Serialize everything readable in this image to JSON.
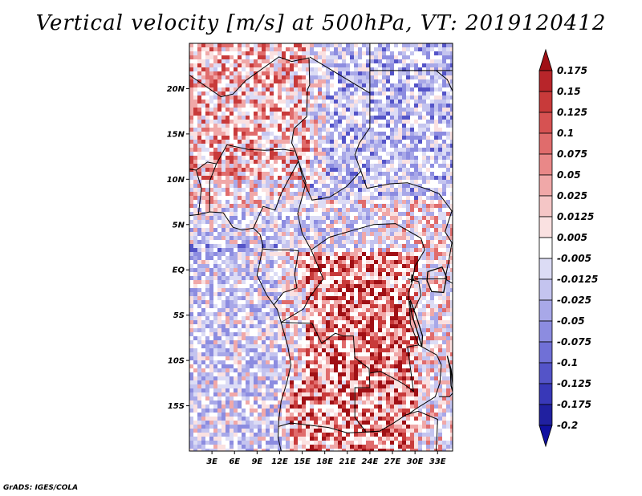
{
  "title": "Vertical velocity [m/s] at 500hPa, VT: 2019120412",
  "footer": "GrADS: IGES/COLA",
  "map": {
    "projection": "lat-lon",
    "lon_range": [
      0,
      35
    ],
    "lat_range": [
      -20,
      25
    ],
    "lat_labels": [
      "20N",
      "15N",
      "10N",
      "5N",
      "EQ",
      "5S",
      "10S",
      "15S"
    ],
    "lat_values": [
      20,
      15,
      10,
      5,
      0,
      -5,
      -10,
      -15
    ],
    "lon_labels": [
      "3E",
      "6E",
      "9E",
      "12E",
      "15E",
      "18E",
      "21E",
      "24E",
      "27E",
      "30E",
      "33E"
    ],
    "lon_values": [
      3,
      6,
      9,
      12,
      15,
      18,
      21,
      24,
      27,
      30,
      33
    ]
  },
  "colorbar": {
    "labels": [
      "0.175",
      "0.15",
      "0.125",
      "0.1",
      "0.075",
      "0.05",
      "0.025",
      "0.0125",
      "0.005",
      "-0.005",
      "-0.0125",
      "-0.025",
      "-0.05",
      "-0.075",
      "-0.1",
      "-0.125",
      "-0.175",
      "-0.2"
    ],
    "colors": [
      "#a01015",
      "#b8252a",
      "#c83a3a",
      "#d65252",
      "#e06c6c",
      "#e98888",
      "#f0a8a8",
      "#f5c6c6",
      "#fae1e1",
      "#ffffff",
      "#dcdcf5",
      "#c4c4ef",
      "#a8a8e8",
      "#8c8ce0",
      "#7070d6",
      "#5454c8",
      "#3838b8",
      "#2020a0",
      "#1010a0"
    ]
  }
}
